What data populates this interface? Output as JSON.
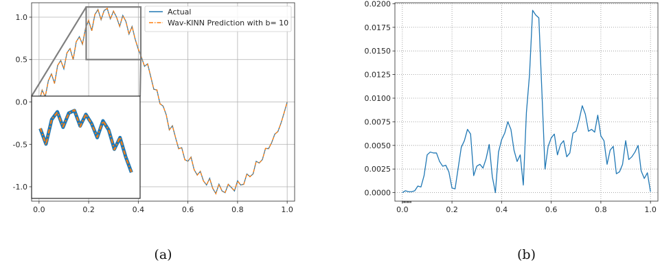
{
  "chart_data": [
    {
      "type": "line",
      "caption": "(a)",
      "xlim": [
        -0.03,
        1.03
      ],
      "ylim": [
        -1.17,
        1.17
      ],
      "xticks": [
        "0.0",
        "0.2",
        "0.4",
        "0.6",
        "0.8",
        "1.0"
      ],
      "yticks": [
        "-1.0",
        "-0.5",
        "0.0",
        "0.5",
        "1.0"
      ],
      "grid": true,
      "legend_position": "top-right",
      "series": [
        {
          "name": "Actual",
          "color": "#1f77b4",
          "style": "solid"
        },
        {
          "name": "Wav-KINN Prediction with b= 10",
          "color": "#ff7f0e",
          "style": "dashdot"
        }
      ],
      "x": [
        0.0,
        0.0125,
        0.025,
        0.0375,
        0.05,
        0.0625,
        0.075,
        0.0875,
        0.1,
        0.1125,
        0.125,
        0.1375,
        0.15,
        0.1625,
        0.175,
        0.1875,
        0.2,
        0.2125,
        0.225,
        0.2375,
        0.25,
        0.2625,
        0.275,
        0.2875,
        0.3,
        0.3125,
        0.325,
        0.3375,
        0.35,
        0.3625,
        0.375,
        0.3875,
        0.4,
        0.4125,
        0.425,
        0.4375,
        0.45,
        0.4625,
        0.475,
        0.4875,
        0.5,
        0.5125,
        0.525,
        0.5375,
        0.55,
        0.5625,
        0.575,
        0.5875,
        0.6,
        0.6125,
        0.625,
        0.6375,
        0.65,
        0.6625,
        0.675,
        0.6875,
        0.7,
        0.7125,
        0.725,
        0.7375,
        0.75,
        0.7625,
        0.775,
        0.7875,
        0.8,
        0.8125,
        0.825,
        0.8375,
        0.85,
        0.8625,
        0.875,
        0.8875,
        0.9,
        0.9125,
        0.925,
        0.9375,
        0.95,
        0.9625,
        0.975,
        0.9875,
        1.0
      ],
      "actual": [
        0.0,
        0.14,
        0.06,
        0.25,
        0.33,
        0.22,
        0.43,
        0.49,
        0.39,
        0.58,
        0.63,
        0.5,
        0.71,
        0.77,
        0.68,
        0.87,
        0.96,
        0.84,
        1.03,
        1.09,
        0.97,
        1.08,
        1.1,
        0.98,
        1.07,
        1.0,
        0.89,
        1.02,
        0.95,
        0.8,
        0.89,
        0.74,
        0.62,
        0.53,
        0.42,
        0.45,
        0.3,
        0.15,
        0.14,
        -0.02,
        -0.05,
        -0.15,
        -0.33,
        -0.28,
        -0.42,
        -0.55,
        -0.54,
        -0.68,
        -0.7,
        -0.65,
        -0.8,
        -0.86,
        -0.82,
        -0.93,
        -0.98,
        -0.9,
        -1.02,
        -1.08,
        -0.97,
        -1.05,
        -1.07,
        -0.97,
        -1.01,
        -1.05,
        -0.93,
        -0.98,
        -0.97,
        -0.85,
        -0.88,
        -0.85,
        -0.7,
        -0.72,
        -0.68,
        -0.55,
        -0.55,
        -0.48,
        -0.38,
        -0.35,
        -0.25,
        -0.13,
        0.0
      ],
      "predicted": [
        0.0,
        0.138,
        0.063,
        0.247,
        0.334,
        0.216,
        0.432,
        0.487,
        0.394,
        0.576,
        0.634,
        0.497,
        0.712,
        0.766,
        0.684,
        0.866,
        0.963,
        0.836,
        1.032,
        1.086,
        0.974,
        1.078,
        1.104,
        0.976,
        1.072,
        0.997,
        0.894,
        1.018,
        0.953,
        0.797,
        0.893,
        0.737,
        0.623,
        0.528,
        0.423,
        0.447,
        0.303,
        0.147,
        0.143,
        -0.023,
        -0.047,
        -0.153,
        -0.327,
        -0.284,
        -0.417,
        -0.553,
        -0.537,
        -0.683,
        -0.697,
        -0.653,
        -0.797,
        -0.864,
        -0.817,
        -0.933,
        -0.977,
        -0.904,
        -1.017,
        -1.083,
        -0.967,
        -1.053,
        -1.067,
        -0.973,
        -1.007,
        -1.047,
        -0.933,
        -0.977,
        -0.973,
        -0.847,
        -0.883,
        -0.847,
        -0.703,
        -0.717,
        -0.683,
        -0.547,
        -0.553,
        -0.477,
        -0.383,
        -0.347,
        -0.253,
        -0.127,
        0.0
      ],
      "zoom_region": {
        "x": [
          0.19,
          0.41
        ],
        "y": [
          0.5,
          1.12
        ]
      }
    },
    {
      "type": "line",
      "caption": "(b)",
      "xlim": [
        -0.03,
        1.03
      ],
      "ylim": [
        -0.0009,
        0.0201
      ],
      "xticks": [
        "0.0",
        "0.2",
        "0.4",
        "0.6",
        "0.8",
        "1.0"
      ],
      "yticks": [
        "0.0000",
        "0.0025",
        "0.0050",
        "0.0075",
        "0.0100",
        "0.0125",
        "0.0150",
        "0.0175",
        "0.0200"
      ],
      "grid": true,
      "grid_style": "dotted",
      "series": [
        {
          "color": "#1f77b4",
          "style": "solid"
        }
      ],
      "x": [
        0.0,
        0.0125,
        0.025,
        0.0375,
        0.05,
        0.0625,
        0.075,
        0.0875,
        0.1,
        0.1125,
        0.125,
        0.1375,
        0.15,
        0.1625,
        0.175,
        0.1875,
        0.2,
        0.2125,
        0.225,
        0.2375,
        0.25,
        0.2625,
        0.275,
        0.2875,
        0.3,
        0.3125,
        0.325,
        0.3375,
        0.35,
        0.3625,
        0.375,
        0.3875,
        0.4,
        0.4125,
        0.425,
        0.4375,
        0.45,
        0.4625,
        0.475,
        0.4875,
        0.5,
        0.5125,
        0.525,
        0.5375,
        0.55,
        0.5625,
        0.575,
        0.5875,
        0.6,
        0.6125,
        0.625,
        0.6375,
        0.65,
        0.6625,
        0.675,
        0.6875,
        0.7,
        0.7125,
        0.725,
        0.7375,
        0.75,
        0.7625,
        0.775,
        0.7875,
        0.8,
        0.8125,
        0.825,
        0.8375,
        0.85,
        0.8625,
        0.875,
        0.8875,
        0.9,
        0.9125,
        0.925,
        0.9375,
        0.95,
        0.9625,
        0.975,
        0.9875,
        1.0
      ],
      "values": [
        0.0,
        0.0002,
        0.0001,
        0.0001,
        0.0002,
        0.0007,
        0.0006,
        0.0018,
        0.004,
        0.0043,
        0.0042,
        0.0042,
        0.0033,
        0.0028,
        0.0029,
        0.0022,
        0.0005,
        0.0004,
        0.0026,
        0.0048,
        0.0055,
        0.0067,
        0.0062,
        0.0018,
        0.0028,
        0.003,
        0.0026,
        0.0036,
        0.0051,
        0.0017,
        0.0,
        0.0043,
        0.0056,
        0.0063,
        0.0075,
        0.0067,
        0.0045,
        0.0033,
        0.004,
        0.0008,
        0.0085,
        0.0125,
        0.0193,
        0.0188,
        0.0185,
        0.0106,
        0.0025,
        0.0049,
        0.0058,
        0.0062,
        0.004,
        0.0051,
        0.0055,
        0.0038,
        0.0042,
        0.0063,
        0.0065,
        0.0077,
        0.0092,
        0.0083,
        0.0065,
        0.0067,
        0.0064,
        0.0082,
        0.006,
        0.0055,
        0.003,
        0.0045,
        0.0049,
        0.002,
        0.0022,
        0.003,
        0.0055,
        0.0035,
        0.0038,
        0.0043,
        0.005,
        0.0023,
        0.0015,
        0.0021,
        0.0001
      ]
    }
  ]
}
